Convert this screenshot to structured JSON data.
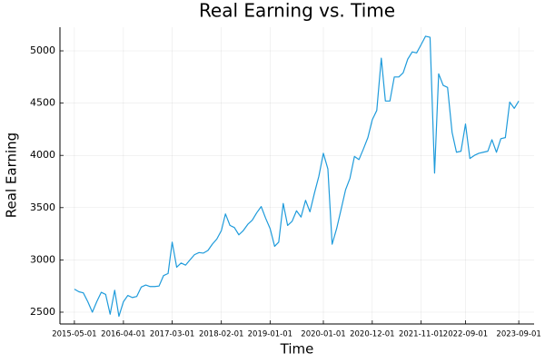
{
  "chart_data": {
    "type": "line",
    "title": "Real Earning vs. Time",
    "x_label": "Time",
    "y_label": "Real Earning",
    "color": "#1f9bdb",
    "grid": true,
    "xlim": [
      "2015-01-22",
      "2023-12-15"
    ],
    "ylim": [
      2387,
      5226
    ],
    "xticks": [
      "2015-05-01",
      "2016-04-01",
      "2017-03-01",
      "2018-02-01",
      "2019-01-01",
      "2020-01-01",
      "2020-12-01",
      "2021-11-01",
      "2022-09-01",
      "2023-09-01"
    ],
    "yticks": [
      2500,
      3000,
      3500,
      4000,
      4500,
      5000
    ],
    "x": [
      "2015-05-01",
      "2015-06-01",
      "2015-07-01",
      "2015-08-01",
      "2015-09-01",
      "2015-10-01",
      "2015-11-01",
      "2015-12-01",
      "2016-01-01",
      "2016-02-01",
      "2016-03-01",
      "2016-04-01",
      "2016-05-01",
      "2016-06-01",
      "2016-07-01",
      "2016-08-01",
      "2016-09-01",
      "2016-10-01",
      "2016-11-01",
      "2016-12-01",
      "2017-01-01",
      "2017-02-01",
      "2017-03-01",
      "2017-04-01",
      "2017-05-01",
      "2017-06-01",
      "2017-07-01",
      "2017-08-01",
      "2017-09-01",
      "2017-10-01",
      "2017-11-01",
      "2017-12-01",
      "2018-01-01",
      "2018-02-01",
      "2018-03-01",
      "2018-04-01",
      "2018-05-01",
      "2018-06-01",
      "2018-07-01",
      "2018-08-01",
      "2018-09-01",
      "2018-10-01",
      "2018-11-01",
      "2018-12-01",
      "2019-01-01",
      "2019-02-01",
      "2019-03-01",
      "2019-04-01",
      "2019-05-01",
      "2019-06-01",
      "2019-07-01",
      "2019-08-01",
      "2019-09-01",
      "2019-10-01",
      "2019-11-01",
      "2019-12-01",
      "2020-01-01",
      "2020-02-01",
      "2020-03-01",
      "2020-04-01",
      "2020-05-01",
      "2020-06-01",
      "2020-07-01",
      "2020-08-01",
      "2020-09-01",
      "2020-10-01",
      "2020-11-01",
      "2020-12-01",
      "2021-01-01",
      "2021-02-01",
      "2021-03-01",
      "2021-04-01",
      "2021-05-01",
      "2021-06-01",
      "2021-07-01",
      "2021-08-01",
      "2021-09-01",
      "2021-10-01",
      "2021-11-01",
      "2021-12-01",
      "2022-01-01",
      "2022-02-01",
      "2022-03-01",
      "2022-04-01",
      "2022-05-01",
      "2022-06-01",
      "2022-07-01",
      "2022-08-01",
      "2022-09-01",
      "2022-10-01",
      "2022-11-01",
      "2022-12-01",
      "2023-01-01",
      "2023-02-01",
      "2023-03-01",
      "2023-04-01",
      "2023-05-01",
      "2023-06-01",
      "2023-07-01",
      "2023-08-01",
      "2023-09-01"
    ],
    "values": [
      2720,
      2695,
      2685,
      2600,
      2500,
      2600,
      2690,
      2670,
      2480,
      2710,
      2460,
      2600,
      2660,
      2640,
      2650,
      2740,
      2760,
      2745,
      2745,
      2750,
      2850,
      2870,
      3170,
      2930,
      2970,
      2950,
      3000,
      3050,
      3070,
      3065,
      3090,
      3150,
      3200,
      3280,
      3440,
      3330,
      3310,
      3240,
      3280,
      3340,
      3380,
      3450,
      3510,
      3400,
      3300,
      3130,
      3170,
      3540,
      3330,
      3370,
      3470,
      3410,
      3570,
      3460,
      3640,
      3800,
      4020,
      3870,
      3150,
      3300,
      3480,
      3670,
      3780,
      3990,
      3960,
      4060,
      4170,
      4340,
      4430,
      4930,
      4520,
      4520,
      4750,
      4750,
      4790,
      4920,
      4990,
      4980,
      5060,
      5140,
      5130,
      3830,
      4780,
      4670,
      4650,
      4220,
      4030,
      4040,
      4300,
      3970,
      4000,
      4020,
      4030,
      4040,
      4150,
      4030,
      4160,
      4170,
      4510,
      4450,
      4520
    ]
  }
}
